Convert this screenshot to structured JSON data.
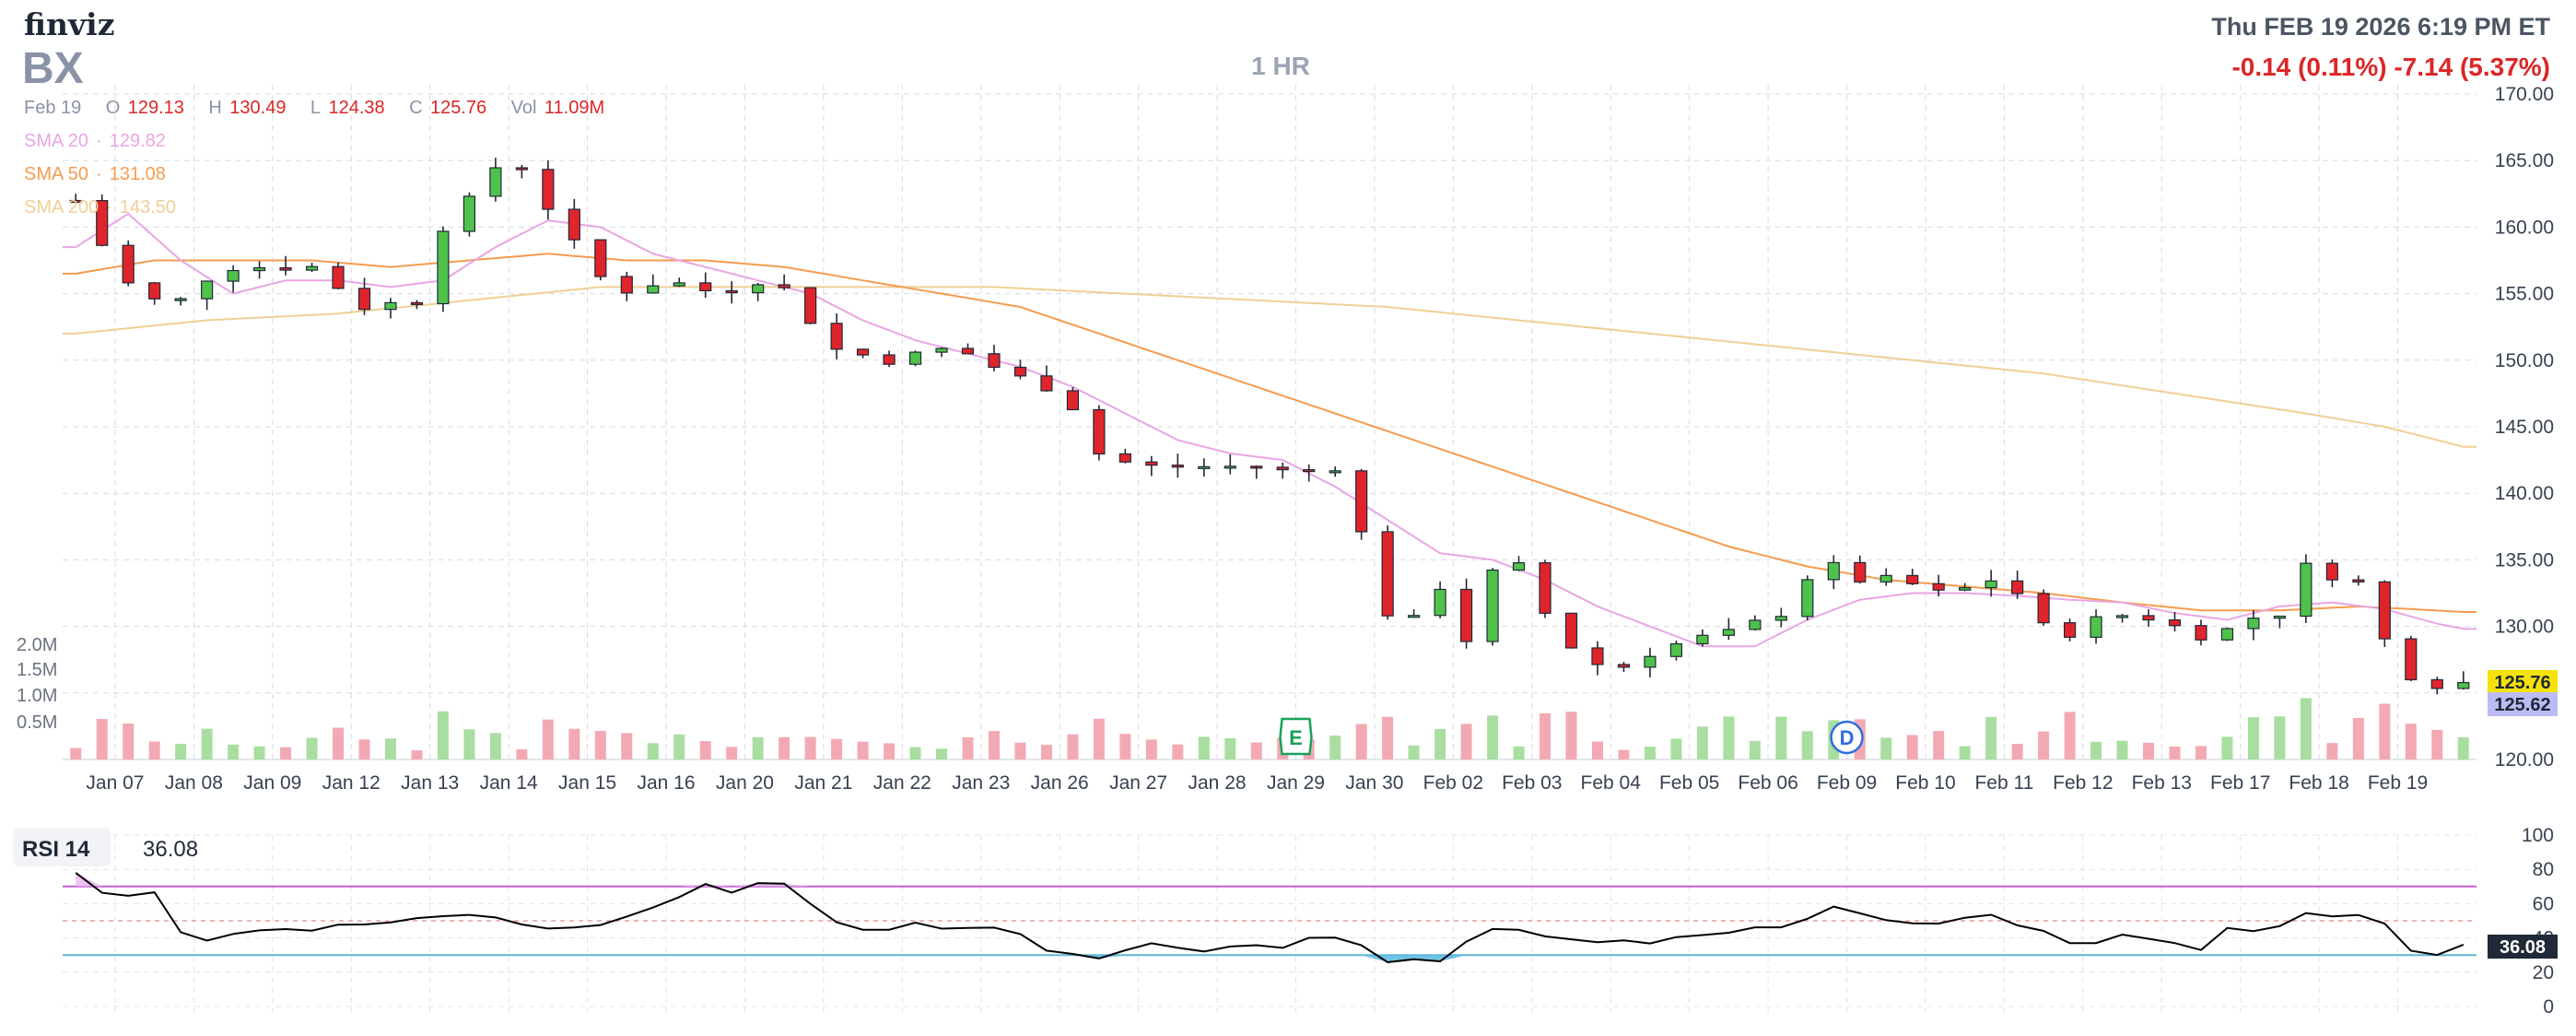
{
  "header": {
    "brand": "finviz",
    "ticker": "BX",
    "timeframe": "1 HR",
    "datetime": "Thu FEB 19 2026 6:19 PM ET",
    "change": "-0.14 (0.11%)  -7.14 (5.37%)"
  },
  "ohlc": {
    "date": "Feb 19",
    "open_label": "O",
    "open": "129.13",
    "high_label": "H",
    "high": "130.49",
    "low_label": "L",
    "low": "124.38",
    "close_label": "C",
    "close": "125.76",
    "vol_label": "Vol",
    "volume": "11.09M"
  },
  "sma": {
    "sma20": {
      "label": "SMA 20",
      "value": "129.82",
      "color": "#e9a6e3"
    },
    "sma50": {
      "label": "SMA 50",
      "value": "131.08",
      "color": "#f59b4f"
    },
    "sma200": {
      "label": "SMA 200",
      "value": "143.50",
      "color": "#f0cf95"
    }
  },
  "colors": {
    "up": "#4ec24b",
    "down": "#e0242c",
    "vol_up": "#a8dea0",
    "vol_down": "#f3a9b3",
    "rsi_line": "#000000",
    "overbought": "#c45bd0",
    "oversold": "#5fb7d6",
    "rsi_fill": "#5ab8e0"
  },
  "price_tags": {
    "last": "125.76",
    "last_color": "#f5e20a",
    "sma20_tag": "125.62",
    "sma20_tag_color": "#bdbbf3"
  },
  "events": [
    {
      "label": "E",
      "date": "Jan 29"
    },
    {
      "label": "D",
      "date": "Feb 09"
    }
  ],
  "rsi": {
    "label": "RSI 14",
    "value": "36.08",
    "ticks": [
      "100",
      "80",
      "60",
      "40",
      "20",
      "0"
    ]
  },
  "chart_data": {
    "type": "candlestick",
    "interval": "1 hour",
    "title": "BX",
    "categories": [
      "Jan 07",
      "Jan 08",
      "Jan 09",
      "Jan 12",
      "Jan 13",
      "Jan 14",
      "Jan 15",
      "Jan 16",
      "Jan 20",
      "Jan 21",
      "Jan 22",
      "Jan 23",
      "Jan 26",
      "Jan 27",
      "Jan 28",
      "Jan 29",
      "Jan 30",
      "Feb 02",
      "Feb 03",
      "Feb 04",
      "Feb 05",
      "Feb 06",
      "Feb 09",
      "Feb 10",
      "Feb 11",
      "Feb 12",
      "Feb 13",
      "Feb 17",
      "Feb 18",
      "Feb 19"
    ],
    "y_ticks": [
      "170.00",
      "165.00",
      "160.00",
      "155.00",
      "150.00",
      "145.00",
      "140.00",
      "135.00",
      "130.00",
      "125.00",
      "120.00"
    ],
    "ylim": [
      120,
      170
    ],
    "volume_ticks": [
      "2.0M",
      "1.5M",
      "1.0M",
      "0.5M"
    ],
    "close_anchors": [
      {
        "x": 0,
        "close": 162
      },
      {
        "x": 1.5,
        "close": 157
      },
      {
        "x": 2.5,
        "close": 154.5
      },
      {
        "x": 4,
        "close": 154.5
      },
      {
        "x": 5.5,
        "close": 157
      },
      {
        "x": 7,
        "close": 157
      },
      {
        "x": 9,
        "close": 157
      },
      {
        "x": 11,
        "close": 154
      },
      {
        "x": 13,
        "close": 154.5
      },
      {
        "x": 14,
        "close": 160
      },
      {
        "x": 15,
        "close": 162
      },
      {
        "x": 16,
        "close": 164.5
      },
      {
        "x": 17,
        "close": 164.5
      },
      {
        "x": 18.5,
        "close": 160
      },
      {
        "x": 20.5,
        "close": 155
      },
      {
        "x": 22.5,
        "close": 156
      },
      {
        "x": 24.5,
        "close": 155
      },
      {
        "x": 26,
        "close": 156
      },
      {
        "x": 27.5,
        "close": 155
      },
      {
        "x": 28.5,
        "close": 151
      },
      {
        "x": 31,
        "close": 150
      },
      {
        "x": 33.5,
        "close": 151
      },
      {
        "x": 35.5,
        "close": 149
      },
      {
        "x": 37,
        "close": 148
      },
      {
        "x": 38,
        "close": 146.5
      },
      {
        "x": 39,
        "close": 143
      },
      {
        "x": 40.5,
        "close": 142
      },
      {
        "x": 42.5,
        "close": 142
      },
      {
        "x": 45,
        "close": 142
      },
      {
        "x": 46.5,
        "close": 141.5
      },
      {
        "x": 48,
        "close": 142
      },
      {
        "x": 49,
        "close": 137
      },
      {
        "x": 50,
        "close": 131
      },
      {
        "x": 51,
        "close": 130.5
      },
      {
        "x": 52,
        "close": 133
      },
      {
        "x": 53,
        "close": 129
      },
      {
        "x": 54,
        "close": 134
      },
      {
        "x": 55,
        "close": 134.5
      },
      {
        "x": 56,
        "close": 131
      },
      {
        "x": 57,
        "close": 128.5
      },
      {
        "x": 58.5,
        "close": 126.5
      },
      {
        "x": 60,
        "close": 128
      },
      {
        "x": 61.5,
        "close": 129
      },
      {
        "x": 63,
        "close": 129.5
      },
      {
        "x": 65,
        "close": 131
      },
      {
        "x": 66.5,
        "close": 135
      },
      {
        "x": 68,
        "close": 133.5
      },
      {
        "x": 69.5,
        "close": 133.5
      },
      {
        "x": 71,
        "close": 132.5
      },
      {
        "x": 72.5,
        "close": 133
      },
      {
        "x": 73.5,
        "close": 134
      },
      {
        "x": 74.5,
        "close": 131
      },
      {
        "x": 75.5,
        "close": 129
      },
      {
        "x": 77,
        "close": 130.5
      },
      {
        "x": 78.5,
        "close": 131
      },
      {
        "x": 80,
        "close": 130
      },
      {
        "x": 81.5,
        "close": 129
      },
      {
        "x": 82.5,
        "close": 130.5
      },
      {
        "x": 84,
        "close": 131
      },
      {
        "x": 85,
        "close": 134.5
      },
      {
        "x": 86.5,
        "close": 133.5
      },
      {
        "x": 87.5,
        "close": 133
      },
      {
        "x": 88,
        "close": 129
      },
      {
        "x": 88.6,
        "close": 127
      },
      {
        "x": 89.5,
        "close": 125.5
      },
      {
        "x": 90.5,
        "close": 125.8
      },
      {
        "x": 91,
        "close": 125.76
      }
    ],
    "sma20_anchors": [
      {
        "x": 0,
        "value": 158.5
      },
      {
        "x": 2,
        "value": 161
      },
      {
        "x": 4,
        "value": 157.5
      },
      {
        "x": 6,
        "value": 155
      },
      {
        "x": 8,
        "value": 156
      },
      {
        "x": 10,
        "value": 156
      },
      {
        "x": 12,
        "value": 155.5
      },
      {
        "x": 14,
        "value": 156
      },
      {
        "x": 16,
        "value": 158.5
      },
      {
        "x": 18,
        "value": 160.5
      },
      {
        "x": 20,
        "value": 160
      },
      {
        "x": 22,
        "value": 158
      },
      {
        "x": 24,
        "value": 157
      },
      {
        "x": 26,
        "value": 156
      },
      {
        "x": 28,
        "value": 155
      },
      {
        "x": 30,
        "value": 153
      },
      {
        "x": 32,
        "value": 151.5
      },
      {
        "x": 34,
        "value": 150.5
      },
      {
        "x": 36,
        "value": 149.5
      },
      {
        "x": 38,
        "value": 148
      },
      {
        "x": 40,
        "value": 146
      },
      {
        "x": 42,
        "value": 144
      },
      {
        "x": 44,
        "value": 143
      },
      {
        "x": 46,
        "value": 142.5
      },
      {
        "x": 48,
        "value": 140.5
      },
      {
        "x": 50,
        "value": 138
      },
      {
        "x": 52,
        "value": 135.5
      },
      {
        "x": 54,
        "value": 135
      },
      {
        "x": 56,
        "value": 133.5
      },
      {
        "x": 58,
        "value": 131.5
      },
      {
        "x": 60,
        "value": 130
      },
      {
        "x": 62,
        "value": 128.5
      },
      {
        "x": 64,
        "value": 128.5
      },
      {
        "x": 66,
        "value": 130.5
      },
      {
        "x": 68,
        "value": 132
      },
      {
        "x": 70,
        "value": 132.5
      },
      {
        "x": 72,
        "value": 132.5
      },
      {
        "x": 74,
        "value": 132.3
      },
      {
        "x": 76,
        "value": 132
      },
      {
        "x": 78,
        "value": 131.8
      },
      {
        "x": 80,
        "value": 131
      },
      {
        "x": 82,
        "value": 130.5
      },
      {
        "x": 84,
        "value": 131.5
      },
      {
        "x": 86,
        "value": 131.8
      },
      {
        "x": 88,
        "value": 131.3
      },
      {
        "x": 90,
        "value": 130.2
      },
      {
        "x": 91,
        "value": 129.82
      }
    ],
    "sma50_anchors": [
      {
        "x": 0,
        "value": 156.5
      },
      {
        "x": 3,
        "value": 157.5
      },
      {
        "x": 6,
        "value": 157.5
      },
      {
        "x": 9,
        "value": 157.5
      },
      {
        "x": 12,
        "value": 157
      },
      {
        "x": 15,
        "value": 157.5
      },
      {
        "x": 18,
        "value": 158
      },
      {
        "x": 21,
        "value": 157.5
      },
      {
        "x": 24,
        "value": 157.5
      },
      {
        "x": 27,
        "value": 157
      },
      {
        "x": 30,
        "value": 156
      },
      {
        "x": 33,
        "value": 155
      },
      {
        "x": 36,
        "value": 154
      },
      {
        "x": 39,
        "value": 152
      },
      {
        "x": 42,
        "value": 150
      },
      {
        "x": 45,
        "value": 148
      },
      {
        "x": 48,
        "value": 146
      },
      {
        "x": 51,
        "value": 144
      },
      {
        "x": 54,
        "value": 142
      },
      {
        "x": 57,
        "value": 140
      },
      {
        "x": 60,
        "value": 138
      },
      {
        "x": 63,
        "value": 136
      },
      {
        "x": 66,
        "value": 134.5
      },
      {
        "x": 69,
        "value": 133.5
      },
      {
        "x": 72,
        "value": 133
      },
      {
        "x": 75,
        "value": 132.5
      },
      {
        "x": 78,
        "value": 131.8
      },
      {
        "x": 81,
        "value": 131.2
      },
      {
        "x": 84,
        "value": 131.2
      },
      {
        "x": 87,
        "value": 131.5
      },
      {
        "x": 89,
        "value": 131.3
      },
      {
        "x": 91,
        "value": 131.08
      }
    ],
    "sma200_anchors": [
      {
        "x": 0,
        "value": 152
      },
      {
        "x": 5,
        "value": 153
      },
      {
        "x": 10,
        "value": 153.5
      },
      {
        "x": 15,
        "value": 154.5
      },
      {
        "x": 20,
        "value": 155.5
      },
      {
        "x": 25,
        "value": 155.5
      },
      {
        "x": 30,
        "value": 155.5
      },
      {
        "x": 35,
        "value": 155.5
      },
      {
        "x": 40,
        "value": 155
      },
      {
        "x": 45,
        "value": 154.5
      },
      {
        "x": 50,
        "value": 154
      },
      {
        "x": 55,
        "value": 153
      },
      {
        "x": 60,
        "value": 152
      },
      {
        "x": 65,
        "value": 151
      },
      {
        "x": 70,
        "value": 150
      },
      {
        "x": 75,
        "value": 149
      },
      {
        "x": 80,
        "value": 147.5
      },
      {
        "x": 85,
        "value": 146
      },
      {
        "x": 88,
        "value": 145
      },
      {
        "x": 91,
        "value": 143.5
      }
    ],
    "rsi_anchors": [
      {
        "x": 0,
        "value": 78
      },
      {
        "x": 1,
        "value": 68
      },
      {
        "x": 2,
        "value": 66
      },
      {
        "x": 3.5,
        "value": 69
      },
      {
        "x": 4,
        "value": 44
      },
      {
        "x": 5,
        "value": 40
      },
      {
        "x": 7,
        "value": 46
      },
      {
        "x": 9,
        "value": 45
      },
      {
        "x": 11,
        "value": 48
      },
      {
        "x": 13,
        "value": 50
      },
      {
        "x": 15,
        "value": 54
      },
      {
        "x": 17,
        "value": 48
      },
      {
        "x": 19,
        "value": 45
      },
      {
        "x": 21,
        "value": 52
      },
      {
        "x": 23,
        "value": 64
      },
      {
        "x": 24,
        "value": 70
      },
      {
        "x": 25,
        "value": 68
      },
      {
        "x": 26,
        "value": 72
      },
      {
        "x": 27.5,
        "value": 72
      },
      {
        "x": 28.5,
        "value": 50
      },
      {
        "x": 30,
        "value": 44
      },
      {
        "x": 32,
        "value": 48
      },
      {
        "x": 34,
        "value": 46
      },
      {
        "x": 36,
        "value": 44
      },
      {
        "x": 37,
        "value": 33
      },
      {
        "x": 39,
        "value": 30
      },
      {
        "x": 41,
        "value": 36
      },
      {
        "x": 43,
        "value": 34
      },
      {
        "x": 45,
        "value": 36
      },
      {
        "x": 46,
        "value": 34
      },
      {
        "x": 47,
        "value": 42
      },
      {
        "x": 49,
        "value": 36
      },
      {
        "x": 50,
        "value": 25
      },
      {
        "x": 52,
        "value": 28
      },
      {
        "x": 54,
        "value": 44
      },
      {
        "x": 56,
        "value": 42
      },
      {
        "x": 58,
        "value": 38
      },
      {
        "x": 60,
        "value": 36
      },
      {
        "x": 62,
        "value": 42
      },
      {
        "x": 64,
        "value": 45
      },
      {
        "x": 66,
        "value": 50
      },
      {
        "x": 67,
        "value": 58
      },
      {
        "x": 68,
        "value": 54
      },
      {
        "x": 70,
        "value": 48
      },
      {
        "x": 72,
        "value": 52
      },
      {
        "x": 73,
        "value": 54
      },
      {
        "x": 75,
        "value": 44
      },
      {
        "x": 76,
        "value": 38
      },
      {
        "x": 78,
        "value": 40
      },
      {
        "x": 80,
        "value": 38
      },
      {
        "x": 81,
        "value": 34
      },
      {
        "x": 82,
        "value": 44
      },
      {
        "x": 84,
        "value": 46
      },
      {
        "x": 85,
        "value": 54
      },
      {
        "x": 87,
        "value": 52
      },
      {
        "x": 88,
        "value": 50
      },
      {
        "x": 89,
        "value": 34
      },
      {
        "x": 90,
        "value": 32
      },
      {
        "x": 91,
        "value": 36.08
      }
    ],
    "rsi_levels": {
      "overbought": 70,
      "oversold": 30
    },
    "rsi_ylim": [
      0,
      100
    ],
    "grid": true,
    "legend": "top-left"
  }
}
